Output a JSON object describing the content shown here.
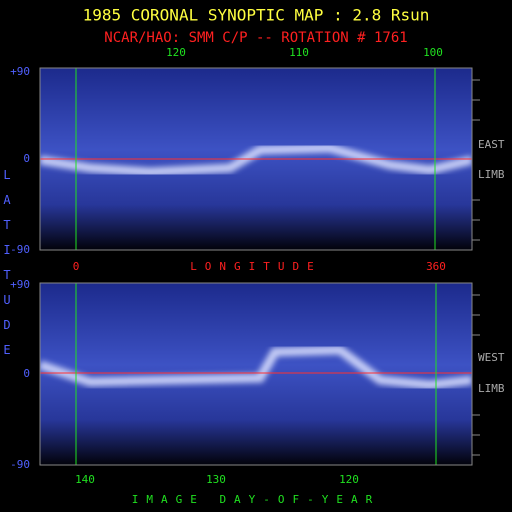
{
  "header": {
    "title": "1985 CORONAL SYNOPTIC MAP : 2.8 Rsun",
    "subtitle": "NCAR/HAO: SMM C/P -- ROTATION # 1761"
  },
  "top_panel": {
    "x_ticks": [
      "120",
      "110",
      "100"
    ],
    "y_ticks": [
      "+90",
      "0",
      "-90"
    ],
    "side_labels": [
      "EAST",
      "LIMB"
    ]
  },
  "middle_axis": {
    "label": "LONGITUDE",
    "ticks": [
      "0",
      "360"
    ]
  },
  "bottom_panel": {
    "y_ticks": [
      "+90",
      "0",
      "-90"
    ],
    "side_labels": [
      "WEST",
      "LIMB"
    ],
    "x_ticks": [
      "140",
      "130",
      "120"
    ],
    "x_label": "IMAGE DAY-OF-YEAR"
  },
  "y_label": "LATITUDE"
}
